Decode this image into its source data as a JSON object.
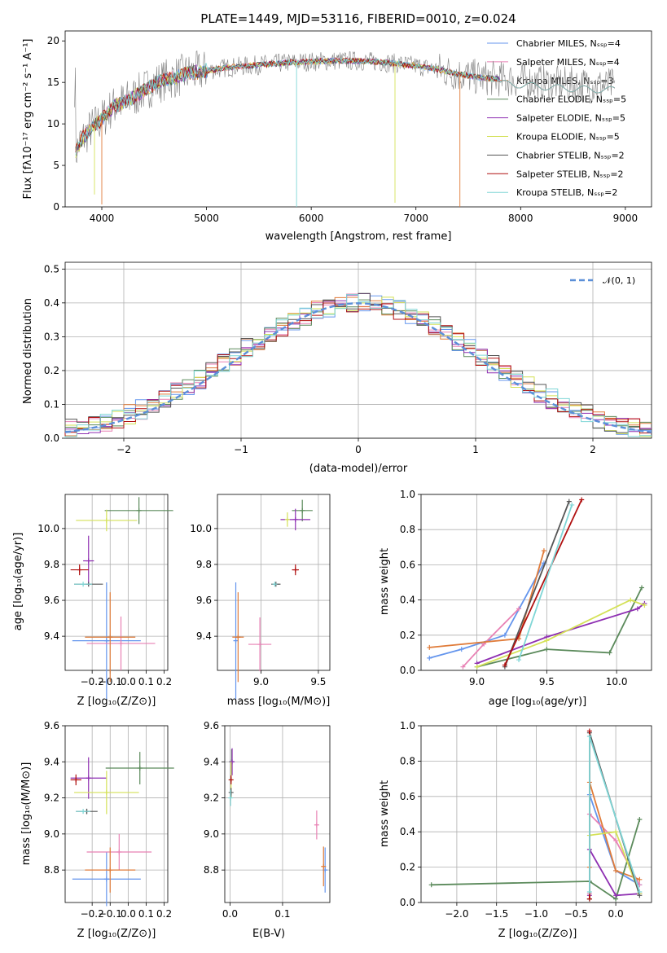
{
  "chart_data": [
    {
      "panel": "spectrum",
      "type": "line",
      "title": "PLATE=1449, MJD=53116, FIBERID=0010, z=0.024",
      "xlabel": "wavelength [Angstrom, rest frame]",
      "ylabel": "Flux [fλ10⁻¹⁷ erg cm⁻² s⁻¹ A⁻¹]",
      "xlim": [
        3650,
        9250
      ],
      "ylim": [
        0,
        21.2
      ],
      "xticks": [
        4000,
        5000,
        6000,
        7000,
        8000,
        9000
      ],
      "yticks": [
        0,
        5,
        10,
        15,
        20
      ],
      "legend_loc": "upper-right",
      "series": [
        {
          "name": "Chabrier MILES, Nₛₛₚ=4",
          "color": "#6495ed"
        },
        {
          "name": "Salpeter MILES, Nₛₛₚ=4",
          "color": "#e881b4"
        },
        {
          "name": "Kroupa MILES, Nₛₛₚ=3",
          "color": "#e07b39"
        },
        {
          "name": "Chabrier ELODIE, Nₛₛₚ=5",
          "color": "#5b8a5b"
        },
        {
          "name": "Salpeter ELODIE, Nₛₛₚ=5",
          "color": "#8e2fb2"
        },
        {
          "name": "Kroupa ELODIE, Nₛₛₚ=5",
          "color": "#d4e157"
        },
        {
          "name": "Chabrier STELIB, Nₛₛₚ=2",
          "color": "#555555"
        },
        {
          "name": "Salpeter STELIB, Nₛₛₚ=2",
          "color": "#b01010"
        },
        {
          "name": "Kroupa STELIB, Nₛₛₚ=2",
          "color": "#7fd6d6"
        }
      ],
      "data_x": [
        3750,
        3800,
        3900,
        4000,
        4100,
        4200,
        4300,
        4400,
        4500,
        4600,
        4700,
        4800,
        4900,
        5000,
        5200,
        5400,
        5600,
        5800,
        6000,
        6200,
        6400,
        6600,
        6800,
        7000,
        7200,
        7400,
        7600,
        7800,
        8000,
        8200,
        8400,
        8600,
        8800
      ],
      "data_y": [
        6.5,
        8.0,
        9.5,
        10.5,
        12.0,
        12.6,
        13.2,
        14.0,
        14.8,
        15.3,
        15.6,
        16.0,
        16.2,
        16.4,
        16.8,
        17.0,
        17.2,
        17.4,
        17.5,
        17.6,
        17.6,
        17.5,
        17.3,
        17.0,
        16.6,
        16.0,
        15.6,
        15.4,
        15.2,
        15.0,
        14.8,
        14.7,
        14.6
      ]
    },
    {
      "panel": "residual-histogram",
      "type": "bar",
      "xlabel": "(data-model)/error",
      "ylabel": "Normed distribution",
      "xlim": [
        -2.5,
        2.5
      ],
      "ylim": [
        0,
        0.52
      ],
      "xticks": [
        -2,
        -1,
        0,
        1,
        2
      ],
      "yticks": [
        0.0,
        0.1,
        0.2,
        0.3,
        0.4,
        0.5
      ],
      "bin_width": 0.1,
      "hist_series_colors": [
        "#6495ed",
        "#e881b4",
        "#e07b39",
        "#5b8a5b",
        "#8e2fb2",
        "#d4e157",
        "#555555",
        "#b01010",
        "#7fd6d6"
      ],
      "legend_loc": "upper-right",
      "reference": {
        "name": "𝒩(0, 1)",
        "color": "#5b8fd8"
      }
    },
    {
      "panel": "age-vs-Z",
      "type": "scatter",
      "xlabel": "Z [log₁₀(Z/Z⊙)]",
      "ylabel": "age  [log₁₀(age/yr)]",
      "xlim": [
        -0.35,
        0.22
      ],
      "ylim": [
        9.21,
        10.19
      ],
      "xticks": [
        -0.2,
        -0.1,
        0.0,
        0.1,
        0.2
      ],
      "yticks": [
        9.4,
        9.6,
        9.8,
        10.0
      ],
      "points": [
        {
          "x": -0.12,
          "y": 9.375,
          "xerr": 0.19,
          "yerr": 0.65,
          "c": "#6495ed"
        },
        {
          "x": -0.04,
          "y": 9.36,
          "xerr": 0.19,
          "yerr": 0.3,
          "c": "#e881b4"
        },
        {
          "x": -0.1,
          "y": 9.395,
          "xerr": 0.14,
          "yerr": 0.5,
          "c": "#e07b39"
        },
        {
          "x": 0.06,
          "y": 10.1,
          "xerr": 0.19,
          "yerr": 0.15,
          "c": "#5b8a5b"
        },
        {
          "x": -0.22,
          "y": 9.82,
          "xerr": 0.03,
          "yerr": 0.28,
          "c": "#8e2fb2"
        },
        {
          "x": -0.12,
          "y": 10.045,
          "xerr": 0.17,
          "yerr": 0.12,
          "c": "#d4e157"
        },
        {
          "x": -0.22,
          "y": 9.69,
          "xerr": 0.08,
          "yerr": 0.0,
          "c": "#555555"
        },
        {
          "x": -0.27,
          "y": 9.77,
          "xerr": 0.05,
          "yerr": 0.06,
          "c": "#b01010"
        },
        {
          "x": -0.25,
          "y": 9.69,
          "xerr": 0.05,
          "yerr": 0.0,
          "c": "#7fd6d6"
        }
      ]
    },
    {
      "panel": "age-vs-mass",
      "type": "scatter",
      "xlabel": "mass [log₁₀(M/M⊙)]",
      "ylabel": "",
      "xlim": [
        8.62,
        9.6
      ],
      "ylim": [
        9.21,
        10.19
      ],
      "xticks": [
        9.0,
        9.5
      ],
      "yticks": [
        9.4,
        9.6,
        9.8,
        10.0
      ],
      "points": [
        {
          "x": 8.78,
          "y": 9.375,
          "xerr": 0.0,
          "yerr": 0.65,
          "c": "#6495ed"
        },
        {
          "x": 8.99,
          "y": 9.355,
          "xerr": 0.1,
          "yerr": 0.3,
          "c": "#e881b4"
        },
        {
          "x": 8.8,
          "y": 9.395,
          "xerr": 0.05,
          "yerr": 0.5,
          "c": "#e07b39"
        },
        {
          "x": 9.36,
          "y": 10.1,
          "xerr": 0.09,
          "yerr": 0.12,
          "c": "#5b8a5b"
        },
        {
          "x": 9.3,
          "y": 10.05,
          "xerr": 0.13,
          "yerr": 0.12,
          "c": "#8e2fb2"
        },
        {
          "x": 9.23,
          "y": 10.05,
          "xerr": 0.0,
          "yerr": 0.08,
          "c": "#d4e157"
        },
        {
          "x": 9.13,
          "y": 9.69,
          "xerr": 0.04,
          "yerr": 0.0,
          "c": "#555555"
        },
        {
          "x": 9.3,
          "y": 9.77,
          "xerr": 0.03,
          "yerr": 0.06,
          "c": "#b01010"
        },
        {
          "x": 9.12,
          "y": 9.69,
          "xerr": 0.0,
          "yerr": 0.0,
          "c": "#7fd6d6"
        }
      ]
    },
    {
      "panel": "mass-weight-vs-age",
      "type": "line",
      "xlabel": "age  [log₁₀(age/yr)]",
      "ylabel": "mass weight",
      "xlim": [
        8.6,
        10.25
      ],
      "ylim": [
        0,
        1
      ],
      "xticks": [
        9.0,
        9.5,
        10.0
      ],
      "yticks": [
        0.0,
        0.2,
        0.4,
        0.6,
        0.8,
        1.0
      ],
      "series": [
        {
          "c": "#6495ed",
          "x": [
            8.66,
            8.89,
            9.2,
            9.48
          ],
          "y": [
            0.07,
            0.12,
            0.2,
            0.61
          ]
        },
        {
          "c": "#e881b4",
          "x": [
            8.9,
            9.05,
            9.3
          ],
          "y": [
            0.02,
            0.15,
            0.35
          ]
        },
        {
          "c": "#e07b39",
          "x": [
            8.66,
            9.3,
            9.48
          ],
          "y": [
            0.13,
            0.18,
            0.68
          ]
        },
        {
          "c": "#5b8a5b",
          "x": [
            9.0,
            9.5,
            9.95,
            10.18
          ],
          "y": [
            0.02,
            0.12,
            0.1,
            0.47
          ]
        },
        {
          "c": "#8e2fb2",
          "x": [
            9.0,
            9.5,
            10.15,
            10.2
          ],
          "y": [
            0.04,
            0.19,
            0.35,
            0.38
          ]
        },
        {
          "c": "#d4e157",
          "x": [
            9.0,
            9.5,
            10.1,
            10.2
          ],
          "y": [
            0.02,
            0.17,
            0.4,
            0.37
          ]
        },
        {
          "c": "#555555",
          "x": [
            9.2,
            9.66
          ],
          "y": [
            0.02,
            0.96
          ]
        },
        {
          "c": "#b01010",
          "x": [
            9.2,
            9.75
          ],
          "y": [
            0.03,
            0.97
          ]
        },
        {
          "c": "#7fd6d6",
          "x": [
            9.3,
            9.68
          ],
          "y": [
            0.06,
            0.94
          ]
        }
      ]
    },
    {
      "panel": "mass-vs-Z",
      "type": "scatter",
      "xlabel": "Z [log₁₀(Z/Z⊙)]",
      "ylabel": "mass [log₁₀(M/M⊙)]",
      "xlim": [
        -0.35,
        0.22
      ],
      "ylim": [
        8.62,
        9.6
      ],
      "xticks": [
        -0.2,
        -0.1,
        0.0,
        0.1,
        0.2
      ],
      "yticks": [
        8.8,
        9.0,
        9.2,
        9.4,
        9.6
      ],
      "points": [
        {
          "x": -0.12,
          "y": 8.75,
          "xerr": 0.19,
          "yerr": 0.3,
          "c": "#6495ed"
        },
        {
          "x": -0.05,
          "y": 8.9,
          "xerr": 0.18,
          "yerr": 0.2,
          "c": "#e881b4"
        },
        {
          "x": -0.1,
          "y": 8.8,
          "xerr": 0.14,
          "yerr": 0.25,
          "c": "#e07b39"
        },
        {
          "x": 0.065,
          "y": 9.365,
          "xerr": 0.19,
          "yerr": 0.18,
          "c": "#5b8a5b"
        },
        {
          "x": -0.22,
          "y": 9.31,
          "xerr": 0.1,
          "yerr": 0.23,
          "c": "#8e2fb2"
        },
        {
          "x": -0.12,
          "y": 9.23,
          "xerr": 0.18,
          "yerr": 0.24,
          "c": "#d4e157"
        },
        {
          "x": -0.23,
          "y": 9.125,
          "xerr": 0.06,
          "yerr": 0.03,
          "c": "#555555"
        },
        {
          "x": -0.29,
          "y": 9.3,
          "xerr": 0.03,
          "yerr": 0.06,
          "c": "#b01010"
        },
        {
          "x": -0.25,
          "y": 9.125,
          "xerr": 0.04,
          "yerr": 0.0,
          "c": "#7fd6d6"
        }
      ]
    },
    {
      "panel": "mass-vs-EBV",
      "type": "scatter",
      "xlabel": "E(B-V)",
      "ylabel": "",
      "xlim": [
        -0.01,
        0.19
      ],
      "ylim": [
        8.62,
        9.6
      ],
      "xticks": [
        0.0,
        0.1
      ],
      "yticks": [
        8.8,
        9.0,
        9.2,
        9.4,
        9.6
      ],
      "points": [
        {
          "x": 0.181,
          "y": 8.8,
          "xerr": 0.0,
          "yerr": 0.25,
          "c": "#6495ed"
        },
        {
          "x": 0.165,
          "y": 9.05,
          "xerr": 0.0,
          "yerr": 0.16,
          "c": "#e881b4"
        },
        {
          "x": 0.178,
          "y": 8.82,
          "xerr": 0.0,
          "yerr": 0.22,
          "c": "#e07b39"
        },
        {
          "x": 0.003,
          "y": 9.4,
          "xerr": 0.0,
          "yerr": 0.14,
          "c": "#5b8a5b"
        },
        {
          "x": 0.004,
          "y": 9.4,
          "xerr": 0.0,
          "yerr": 0.15,
          "c": "#8e2fb2"
        },
        {
          "x": 0.002,
          "y": 9.3,
          "xerr": 0.0,
          "yerr": 0.2,
          "c": "#d4e157"
        },
        {
          "x": 0.002,
          "y": 9.23,
          "xerr": 0.0,
          "yerr": 0.05,
          "c": "#555555"
        },
        {
          "x": 0.002,
          "y": 9.3,
          "xerr": 0.0,
          "yerr": 0.05,
          "c": "#b01010"
        },
        {
          "x": 0.001,
          "y": 9.2,
          "xerr": 0.0,
          "yerr": 0.09,
          "c": "#7fd6d6"
        }
      ]
    },
    {
      "panel": "mass-weight-vs-Z",
      "type": "line",
      "xlabel": "Z [log₁₀(Z/Z⊙)]",
      "ylabel": "mass weight",
      "xlim": [
        -2.45,
        0.45
      ],
      "ylim": [
        0,
        1
      ],
      "xticks": [
        -2.0,
        -1.5,
        -1.0,
        -0.5,
        0.0
      ],
      "yticks": [
        0.0,
        0.2,
        0.4,
        0.6,
        0.8,
        1.0
      ],
      "series": [
        {
          "c": "#6495ed",
          "x": [
            -0.33,
            -0.33,
            0.0,
            0.3
          ],
          "y": [
            0.02,
            0.61,
            0.18,
            0.1
          ]
        },
        {
          "c": "#e881b4",
          "x": [
            -0.33,
            -0.33,
            0.0,
            0.3
          ],
          "y": [
            0.05,
            0.5,
            0.35,
            0.1
          ]
        },
        {
          "c": "#e07b39",
          "x": [
            -0.33,
            -0.33,
            0.0,
            0.3
          ],
          "y": [
            0.2,
            0.68,
            0.18,
            0.13
          ]
        },
        {
          "c": "#5b8a5b",
          "x": [
            -2.32,
            -0.33,
            0.0,
            0.3
          ],
          "y": [
            0.1,
            0.12,
            0.02,
            0.47
          ]
        },
        {
          "c": "#8e2fb2",
          "x": [
            -0.33,
            -0.33,
            0.0,
            0.3
          ],
          "y": [
            0.04,
            0.3,
            0.04,
            0.05
          ]
        },
        {
          "c": "#d4e157",
          "x": [
            -0.33,
            -0.33,
            0.0,
            0.3
          ],
          "y": [
            0.02,
            0.38,
            0.4,
            0.05
          ]
        },
        {
          "c": "#555555",
          "x": [
            -0.33,
            -0.33,
            0.3
          ],
          "y": [
            0.02,
            0.96,
            0.04
          ]
        },
        {
          "c": "#b01010",
          "x": [
            -0.33,
            -0.33
          ],
          "y": [
            0.02,
            0.97
          ]
        },
        {
          "c": "#7fd6d6",
          "x": [
            -0.33,
            -0.33,
            0.3
          ],
          "y": [
            0.06,
            0.94,
            0.06
          ]
        }
      ]
    }
  ]
}
